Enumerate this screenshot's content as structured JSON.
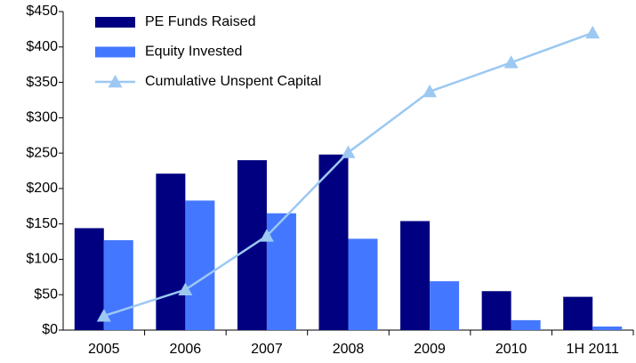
{
  "chart_data": {
    "type": "bar",
    "categories": [
      "2005",
      "2006",
      "2007",
      "2008",
      "2009",
      "2010",
      "1H 2011"
    ],
    "series": [
      {
        "name": "PE Funds Raised",
        "type": "bar",
        "color": "#000080",
        "values": [
          144,
          221,
          240,
          248,
          154,
          55,
          47
        ]
      },
      {
        "name": "Equity Invested",
        "type": "bar",
        "color": "#4477ff",
        "values": [
          127,
          183,
          165,
          129,
          69,
          14,
          5
        ]
      },
      {
        "name": "Cumulative Unspent Capital",
        "type": "line",
        "color": "#9cc8f2",
        "values": [
          20,
          57,
          133,
          251,
          337,
          378,
          420
        ]
      }
    ],
    "ylim": [
      0,
      450
    ],
    "yticks": [
      {
        "value": 0,
        "label": "$0"
      },
      {
        "value": 50,
        "label": "$50"
      },
      {
        "value": 100,
        "label": "$100"
      },
      {
        "value": 150,
        "label": "$150"
      },
      {
        "value": 200,
        "label": "$200"
      },
      {
        "value": 250,
        "label": "$250"
      },
      {
        "value": 300,
        "label": "$300"
      },
      {
        "value": 350,
        "label": "$350"
      },
      {
        "value": 400,
        "label": "$400"
      },
      {
        "value": 450,
        "label": "$450"
      }
    ],
    "grid": false,
    "legend": "upper-left"
  }
}
